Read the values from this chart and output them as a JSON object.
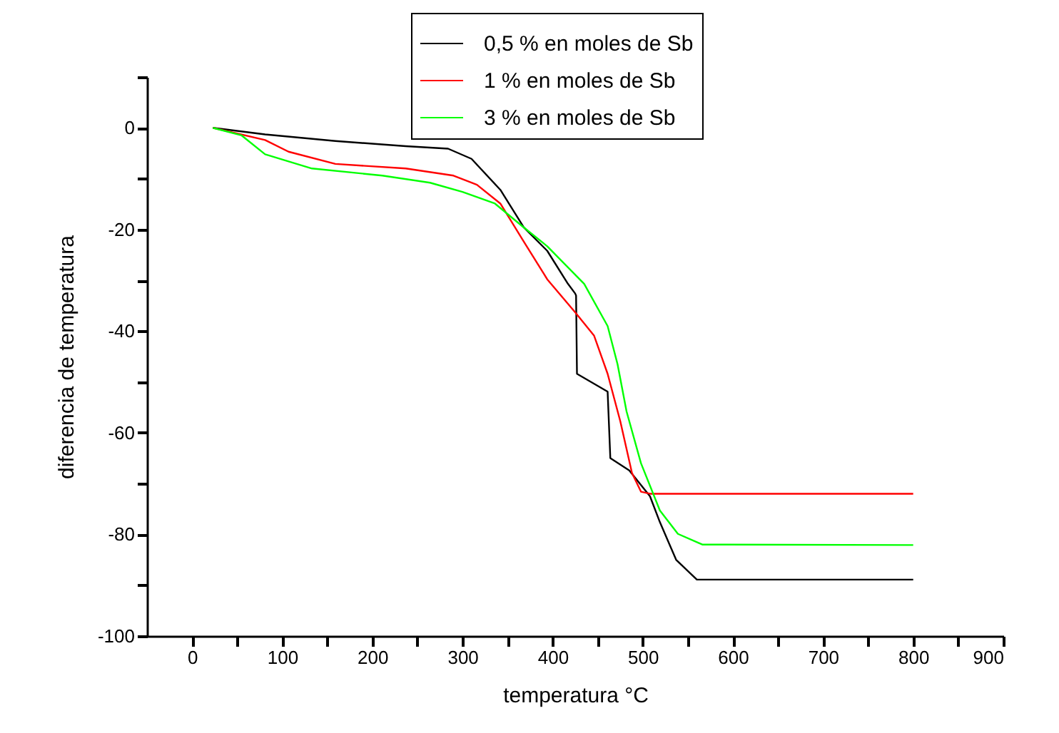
{
  "chart_data": {
    "type": "line",
    "xlabel": "temperatura °C",
    "ylabel": "diferencia de temperatura",
    "xlim": [
      -50,
      900
    ],
    "ylim": [
      -100,
      10
    ],
    "xticks": [
      0,
      {
        "value": 50,
        "label": null
      },
      100,
      {
        "value": 150,
        "label": null
      },
      200,
      {
        "value": 250,
        "label": null
      },
      300,
      {
        "value": 350,
        "label": null
      },
      400,
      {
        "value": 450,
        "label": null
      },
      500,
      {
        "value": 550,
        "label": null
      },
      600,
      {
        "value": 650,
        "label": null
      },
      700,
      {
        "value": 750,
        "label": null
      },
      800,
      {
        "value": 850,
        "label": null
      },
      900
    ],
    "yticks": [
      -100,
      {
        "value": -90,
        "label": null
      },
      -80,
      {
        "value": -70,
        "label": null
      },
      -60,
      {
        "value": -50,
        "label": null
      },
      -40,
      {
        "value": -30,
        "label": null
      },
      -20,
      {
        "value": -10,
        "label": null
      },
      0,
      {
        "value": 10,
        "label": null
      }
    ],
    "grid": false,
    "legend": "top right",
    "line_style": "solid",
    "marker": "none",
    "series": [
      {
        "name": "0,5 % en moles de Sb",
        "color": "#000000",
        "x": [
          23,
          81,
          159,
          237,
          284,
          310,
          342,
          368,
          394,
          417,
          425,
          426,
          427,
          461,
          464,
          485,
          508,
          519,
          537,
          560,
          800
        ],
        "values": [
          0,
          -1.3,
          -2.6,
          -3.6,
          -4.1,
          -6.1,
          -12.2,
          -19.6,
          -24.2,
          -30.7,
          -32.6,
          -33,
          -48.4,
          -51.9,
          -65,
          -67.4,
          -72.5,
          -77.6,
          -85,
          -88.9,
          -88.9
        ]
      },
      {
        "name": "1   % en moles de Sb",
        "color": "#ff0000",
        "x": [
          23,
          81,
          107,
          159,
          237,
          290,
          316,
          342,
          368,
          394,
          425,
          446,
          461,
          475,
          488,
          498,
          508,
          800
        ],
        "values": [
          0,
          -2.4,
          -4.7,
          -7.1,
          -8,
          -9.4,
          -11.2,
          -14.9,
          -22.4,
          -29.8,
          -36.3,
          -40.9,
          -48.4,
          -57.7,
          -67.9,
          -71.6,
          -72,
          -72
        ]
      },
      {
        "name": "3   % en moles de Sb",
        "color": "#00ff00",
        "x": [
          23,
          55,
          81,
          133,
          211,
          264,
          300,
          336,
          368,
          394,
          435,
          461,
          472,
          482,
          498,
          519,
          539,
          566,
          800
        ],
        "values": [
          0,
          -1.5,
          -5.2,
          -8,
          -9.4,
          -10.8,
          -12.6,
          -14.9,
          -19.6,
          -23.3,
          -30.7,
          -39,
          -46.5,
          -55.8,
          -66,
          -75.3,
          -79.9,
          -82,
          -82.1
        ]
      }
    ]
  }
}
